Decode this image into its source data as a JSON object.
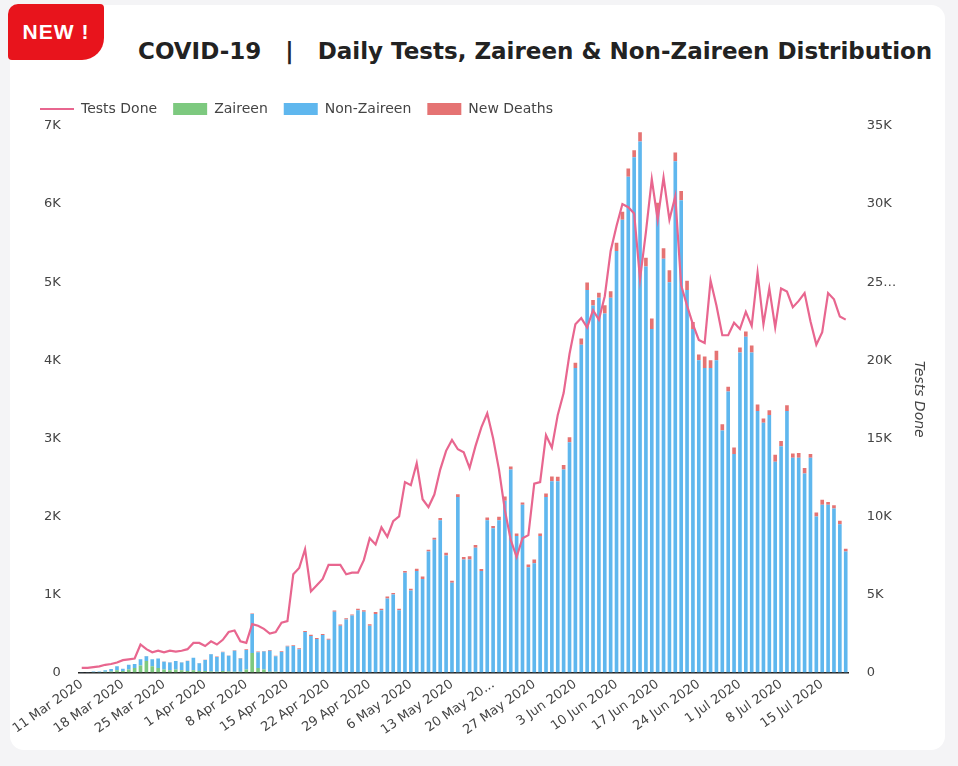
{
  "badge": "NEW !",
  "chart_data": {
    "type": "bar",
    "title": "COVID-19   |   Daily Tests, Zaireen & Non-Zaireen Distribution",
    "y2_label": "Tests Done",
    "stacked": true,
    "grid": false,
    "legend": "top",
    "categories": [
      "11 Mar 2020",
      null,
      null,
      null,
      null,
      null,
      null,
      "18 Mar 2020",
      null,
      null,
      null,
      null,
      null,
      null,
      "25 Mar 2020",
      null,
      null,
      null,
      null,
      null,
      null,
      "1 Apr 2020",
      null,
      null,
      null,
      null,
      null,
      null,
      "8 Apr 2020",
      null,
      null,
      null,
      null,
      null,
      null,
      "15 Apr 2020",
      null,
      null,
      null,
      null,
      null,
      null,
      "22 Apr 2020",
      null,
      null,
      null,
      null,
      null,
      null,
      "29 Apr 2020",
      null,
      null,
      null,
      null,
      null,
      null,
      "6 May 2020",
      null,
      null,
      null,
      null,
      null,
      null,
      "13 May 2020",
      null,
      null,
      null,
      null,
      null,
      null,
      "20 May 20...",
      null,
      null,
      null,
      null,
      null,
      null,
      "27 May 2020",
      null,
      null,
      null,
      null,
      null,
      null,
      "3 Jun 2020",
      null,
      null,
      null,
      null,
      null,
      null,
      "10 Jun 2020",
      null,
      null,
      null,
      null,
      null,
      null,
      "17 Jun 2020",
      null,
      null,
      null,
      null,
      null,
      null,
      "24 Jun 2020",
      null,
      null,
      null,
      null,
      null,
      null,
      "1 Jul 2020",
      null,
      null,
      null,
      null,
      null,
      null,
      "8 Jul 2020",
      null,
      null,
      null,
      null,
      null,
      null,
      "15 Jul 2020",
      null,
      null,
      null,
      null
    ],
    "ylim": [
      0,
      7000
    ],
    "yticks": [
      0,
      {
        "value": 1000,
        "label": "1K"
      },
      {
        "value": 2000,
        "label": "2K"
      },
      {
        "value": 3000,
        "label": "3K"
      },
      {
        "value": 4000,
        "label": "4K"
      },
      {
        "value": 5000,
        "label": "5K"
      },
      {
        "value": 6000,
        "label": "6K"
      },
      {
        "value": 7000,
        "label": "7K"
      }
    ],
    "y2lim": [
      0,
      35000
    ],
    "y2ticks": [
      0,
      {
        "value": 5000,
        "label": "5K"
      },
      {
        "value": 10000,
        "label": "10K"
      },
      {
        "value": 15000,
        "label": "15K"
      },
      {
        "value": 20000,
        "label": "20K"
      },
      {
        "value": 25000,
        "label": "25…"
      },
      {
        "value": 30000,
        "label": "30K"
      },
      {
        "value": 35000,
        "label": "35K"
      }
    ],
    "series": [
      {
        "name": "Zaireen",
        "color": "#7dc97f",
        "values": [
          0,
          0,
          5,
          5,
          10,
          15,
          30,
          20,
          40,
          60,
          90,
          150,
          80,
          60,
          40,
          30,
          40,
          30,
          20,
          30,
          20,
          20,
          15,
          10,
          20,
          15,
          10,
          10,
          40,
          250,
          60,
          40,
          10,
          10,
          5,
          5,
          0,
          0,
          0,
          0,
          0,
          0,
          0,
          0,
          0,
          0,
          0,
          0,
          0,
          0,
          0,
          0,
          0,
          0,
          0,
          0,
          0,
          0,
          0,
          0,
          0,
          0,
          0,
          0,
          0,
          0,
          0,
          0,
          0,
          0,
          0,
          0,
          0,
          0,
          0,
          0,
          0,
          0,
          0,
          0,
          0,
          0,
          0,
          0,
          0,
          0,
          0,
          0,
          0,
          0,
          0,
          0,
          0,
          0,
          0,
          0,
          0,
          0,
          0,
          0,
          0,
          0,
          0,
          0,
          0,
          0,
          0,
          0,
          0,
          0,
          0,
          0,
          0,
          0,
          0,
          0,
          0,
          0,
          0,
          0,
          0,
          0,
          0,
          0,
          0,
          0,
          0,
          0,
          0,
          0,
          0
        ]
      },
      {
        "name": "Non-Zaireen",
        "color": "#5fb7ee",
        "values": [
          5,
          5,
          10,
          10,
          20,
          30,
          50,
          30,
          60,
          50,
          80,
          60,
          90,
          120,
          100,
          100,
          110,
          100,
          130,
          160,
          100,
          140,
          220,
          190,
          240,
          200,
          270,
          170,
          250,
          500,
          200,
          230,
          270,
          200,
          260,
          330,
          340,
          300,
          520,
          470,
          430,
          480,
          420,
          780,
          600,
          680,
          730,
          800,
          780,
          600,
          750,
          800,
          950,
          1000,
          800,
          1280,
          1050,
          1300,
          1200,
          1550,
          1700,
          1950,
          1500,
          1150,
          2250,
          1450,
          1450,
          1600,
          1300,
          1950,
          1850,
          1950,
          2200,
          2600,
          1750,
          2150,
          1350,
          1400,
          1750,
          2250,
          2450,
          2450,
          2600,
          2950,
          3900,
          4200,
          4900,
          4700,
          4800,
          4600,
          4800,
          5400,
          5800,
          6350,
          6600,
          6800,
          5200,
          4400,
          5900,
          5300,
          5000,
          6550,
          6050,
          4900,
          4400,
          4000,
          3900,
          3900,
          4000,
          3100,
          3600,
          2800,
          4100,
          4300,
          4100,
          3350,
          3200,
          3300,
          2700,
          2900,
          3350,
          2750,
          2750,
          2550,
          2750,
          2000,
          2150,
          2150,
          2100,
          1900,
          1550
        ]
      },
      {
        "name": "New Deaths",
        "color": "#e57373",
        "values": [
          0,
          0,
          0,
          0,
          0,
          0,
          0,
          0,
          1,
          1,
          1,
          2,
          1,
          1,
          1,
          1,
          0,
          3,
          2,
          1,
          2,
          4,
          3,
          5,
          6,
          4,
          5,
          6,
          8,
          6,
          9,
          7,
          8,
          6,
          10,
          8,
          11,
          11,
          13,
          14,
          12,
          14,
          13,
          16,
          15,
          16,
          14,
          17,
          20,
          20,
          25,
          18,
          25,
          20,
          17,
          20,
          24,
          30,
          31,
          23,
          28,
          30,
          34,
          27,
          34,
          32,
          40,
          34,
          27,
          35,
          27,
          46,
          56,
          40,
          32,
          28,
          33,
          47,
          32,
          44,
          60,
          59,
          60,
          65,
          67,
          78,
          97,
          71,
          65,
          105,
          83,
          105,
          101,
          107,
          88,
          119,
          113,
          136,
          118,
          136,
          153,
          111,
          119,
          118,
          91,
          75,
          148,
          100,
          121,
          82,
          60,
          83,
          63,
          68,
          88,
          82,
          55,
          59,
          89,
          65,
          75,
          56,
          63,
          70,
          49,
          49,
          64,
          36,
          44,
          44,
          36
        ]
      },
      {
        "name": "Tests Done",
        "color": "#e8668f",
        "type": "line",
        "axis": "y2",
        "values": [
          300,
          300,
          350,
          400,
          500,
          550,
          650,
          800,
          850,
          900,
          1800,
          1500,
          1300,
          1400,
          1300,
          1400,
          1350,
          1400,
          1500,
          1900,
          1900,
          1700,
          2000,
          1800,
          2100,
          2600,
          2700,
          2000,
          1900,
          3100,
          3000,
          2800,
          2500,
          2600,
          3200,
          3300,
          6300,
          6700,
          7900,
          5200,
          5600,
          6000,
          6900,
          6900,
          6900,
          6300,
          6400,
          6400,
          7200,
          8600,
          8200,
          9300,
          8700,
          9700,
          10000,
          12200,
          12000,
          13400,
          11100,
          10600,
          11400,
          13000,
          14200,
          14900,
          14300,
          14100,
          13100,
          14500,
          15700,
          16600,
          15000,
          13000,
          10400,
          8500,
          7400,
          8600,
          8800,
          12100,
          12200,
          15200,
          14400,
          16500,
          17900,
          20400,
          22300,
          22700,
          22100,
          23200,
          22600,
          24100,
          27000,
          28600,
          30000,
          29800,
          29400,
          25200,
          28200,
          31600,
          29000,
          31700,
          29000,
          30500,
          24800,
          23500,
          22300,
          21300,
          21100,
          25100,
          23500,
          21600,
          21600,
          22400,
          22000,
          23100,
          22200,
          25600,
          22300,
          24600,
          22100,
          24600,
          24400,
          23400,
          23800,
          24300,
          22500,
          21000,
          21800,
          24300,
          23900,
          22800,
          22600
        ]
      }
    ]
  }
}
